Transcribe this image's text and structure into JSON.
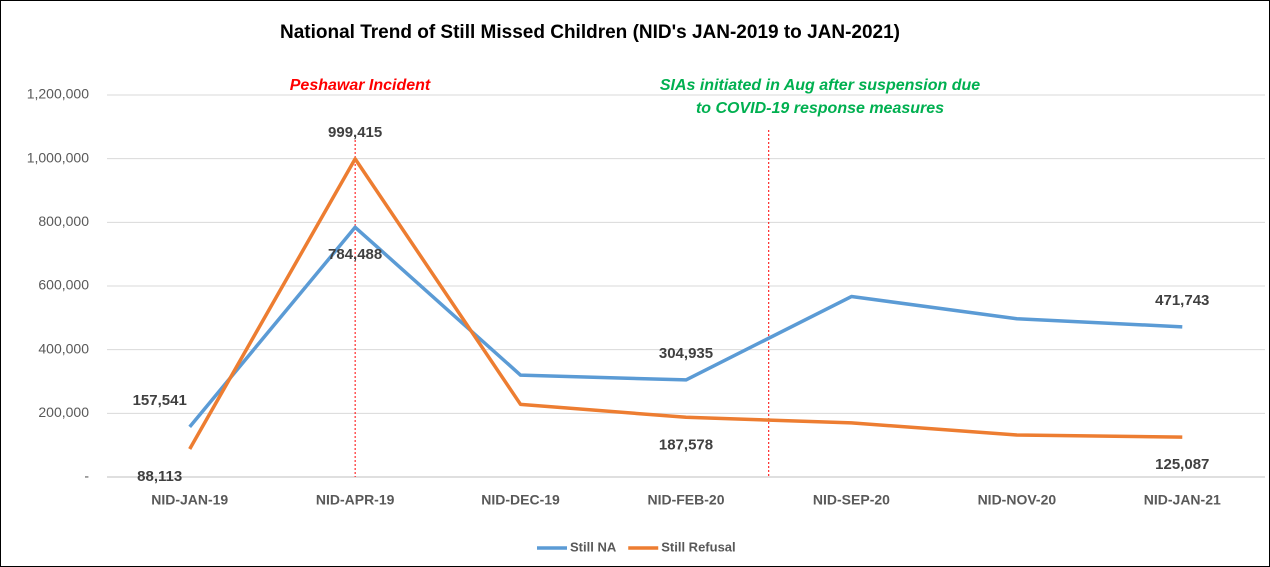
{
  "chart_data": {
    "type": "line",
    "title": "National Trend of Still Missed Children (NID's JAN-2019 to JAN-2021)",
    "categories": [
      "NID-JAN-19",
      "NID-APR-19",
      "NID-DEC-19",
      "NID-FEB-20",
      "NID-SEP-20",
      "NID-NOV-20",
      "NID-JAN-21"
    ],
    "series": [
      {
        "name": "Still NA",
        "color": "#5b9bd5",
        "values": [
          157541,
          784488,
          320000,
          304935,
          567000,
          497000,
          471743
        ],
        "value_labels": [
          "157,541",
          "784,488",
          null,
          "304,935",
          null,
          null,
          "471,743"
        ]
      },
      {
        "name": "Still Refusal",
        "color": "#ed7d31",
        "values": [
          88113,
          999415,
          228000,
          187578,
          170000,
          132000,
          125087
        ],
        "value_labels": [
          "88,113",
          "999,415",
          null,
          "187,578",
          null,
          null,
          "125,087"
        ]
      }
    ],
    "ylim": [
      0,
      1200000
    ],
    "yticks": [
      {
        "value": 0,
        "label": "-"
      },
      {
        "value": 200000,
        "label": "200,000"
      },
      {
        "value": 400000,
        "label": "400,000"
      },
      {
        "value": 600000,
        "label": "600,000"
      },
      {
        "value": 800000,
        "label": "800,000"
      },
      {
        "value": 1000000,
        "label": "1,000,000"
      },
      {
        "value": 1200000,
        "label": "1,200,000"
      }
    ],
    "grid": true,
    "legend": "bottom",
    "annotations": [
      {
        "lines": [
          "Peshawar Incident"
        ],
        "color": "#ff0000"
      },
      {
        "lines": [
          "SIAs initiated in Aug after suspension due",
          "to COVID-19 response measures"
        ],
        "color": "#00b050"
      }
    ]
  }
}
